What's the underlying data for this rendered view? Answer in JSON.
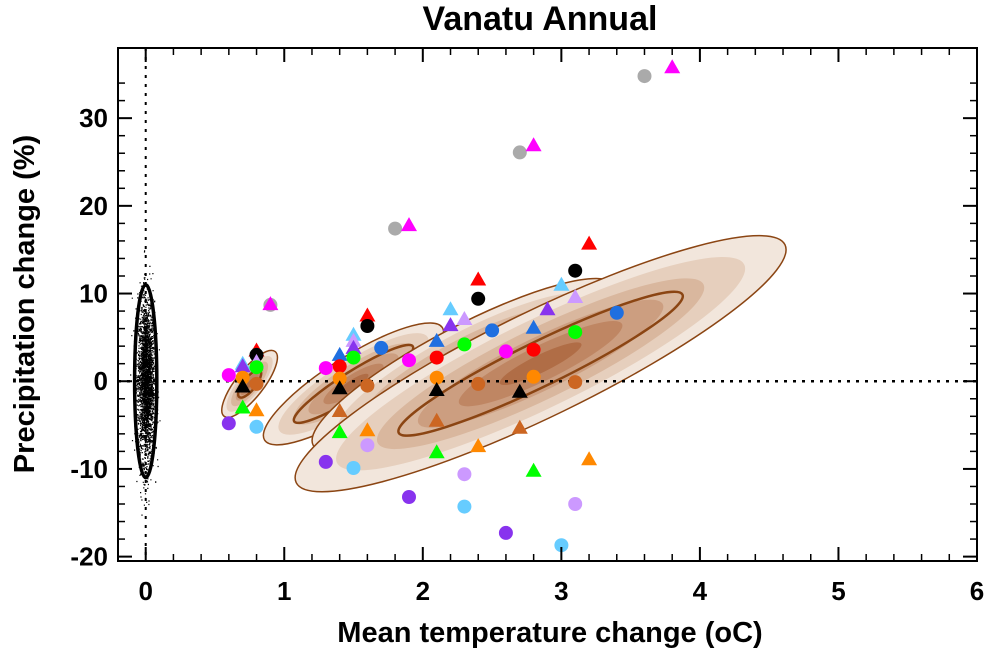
{
  "chart_data": {
    "type": "scatter",
    "title": "Vanatu Annual",
    "xlabel": "Mean temperature change",
    "xlabel_unit": "(oC)",
    "ylabel": "Precipitation change (%)",
    "xlim": [
      -0.2,
      6.0
    ],
    "ylim": [
      -20.5,
      38.0
    ],
    "xticks": [
      0,
      1,
      2,
      3,
      4,
      5,
      6
    ],
    "yticks": [
      -20,
      -10,
      0,
      10,
      20,
      30
    ],
    "xtick_labels": [
      "0",
      "1",
      "2",
      "3",
      "4",
      "5",
      "6"
    ],
    "ytick_labels": [
      "-20",
      "-10",
      "0",
      "10",
      "20",
      "30"
    ],
    "zero_lines": [
      "x = 0",
      "y = 0"
    ],
    "natural_variability": {
      "center_x": 0.0,
      "center_y": 0.0,
      "spread_x": 0.03,
      "spread_y": 4.5,
      "contour_half_width_x": 0.08,
      "contour_half_height_y": 11.0,
      "cloud_y_range": [
        -15.5,
        15.5
      ]
    },
    "ensembles": [
      {
        "name": "ensemble-1",
        "center": [
          0.75,
          -0.3
        ],
        "semi_axes": [
          0.1,
          4.7
        ],
        "core_semi_axes": [
          0.045,
          1.9
        ],
        "tilt": 0.05,
        "points": [
          {
            "x": 0.9,
            "y": 8.7,
            "c": "#aaaaaa",
            "m": "circle"
          },
          {
            "x": 0.9,
            "y": 8.8,
            "c": "#ff00ff",
            "m": "triangle"
          },
          {
            "x": 0.8,
            "y": 3.5,
            "c": "#ff0000",
            "m": "triangle"
          },
          {
            "x": 0.8,
            "y": 3.0,
            "c": "#000000",
            "m": "circle"
          },
          {
            "x": 0.8,
            "y": 2.2,
            "c": "#cc99ff",
            "m": "triangle"
          },
          {
            "x": 0.7,
            "y": 2.0,
            "c": "#66ccff",
            "m": "triangle"
          },
          {
            "x": 0.7,
            "y": 1.7,
            "c": "#8833ee",
            "m": "triangle"
          },
          {
            "x": 0.8,
            "y": 1.6,
            "c": "#00ff00",
            "m": "circle"
          },
          {
            "x": 0.6,
            "y": 0.7,
            "c": "#ff00ff",
            "m": "circle"
          },
          {
            "x": 0.7,
            "y": 0.4,
            "c": "#ff8800",
            "m": "circle"
          },
          {
            "x": 0.7,
            "y": -0.6,
            "c": "#000000",
            "m": "triangle"
          },
          {
            "x": 0.8,
            "y": -0.3,
            "c": "#cc6622",
            "m": "circle"
          },
          {
            "x": 0.7,
            "y": -3.0,
            "c": "#00ff00",
            "m": "triangle"
          },
          {
            "x": 0.8,
            "y": -3.3,
            "c": "#ff8800",
            "m": "triangle"
          },
          {
            "x": 0.6,
            "y": -4.8,
            "c": "#8833ee",
            "m": "circle"
          },
          {
            "x": 0.8,
            "y": -5.2,
            "c": "#66ccff",
            "m": "circle"
          }
        ]
      },
      {
        "name": "ensemble-2",
        "center": [
          1.5,
          -0.3
        ],
        "semi_axes": [
          0.2,
          12.0
        ],
        "core_semi_axes": [
          0.09,
          8.0
        ],
        "tilt": 0.1,
        "points": [
          {
            "x": 1.8,
            "y": 17.4,
            "c": "#aaaaaa",
            "m": "circle"
          },
          {
            "x": 1.9,
            "y": 17.8,
            "c": "#ff00ff",
            "m": "triangle"
          },
          {
            "x": 1.6,
            "y": 7.5,
            "c": "#ff0000",
            "m": "triangle"
          },
          {
            "x": 1.6,
            "y": 6.3,
            "c": "#000000",
            "m": "circle"
          },
          {
            "x": 1.5,
            "y": 5.3,
            "c": "#66ccff",
            "m": "triangle"
          },
          {
            "x": 1.5,
            "y": 4.6,
            "c": "#cc99ff",
            "m": "triangle"
          },
          {
            "x": 1.5,
            "y": 3.8,
            "c": "#8833ee",
            "m": "triangle"
          },
          {
            "x": 1.7,
            "y": 3.8,
            "c": "#1f6fe0",
            "m": "circle"
          },
          {
            "x": 1.4,
            "y": 3.0,
            "c": "#1f6fe0",
            "m": "triangle"
          },
          {
            "x": 1.5,
            "y": 2.7,
            "c": "#00ff00",
            "m": "circle"
          },
          {
            "x": 1.9,
            "y": 2.4,
            "c": "#ff00ff",
            "m": "circle"
          },
          {
            "x": 1.4,
            "y": 1.7,
            "c": "#ff0000",
            "m": "circle"
          },
          {
            "x": 1.3,
            "y": 1.5,
            "c": "#ff00ff",
            "m": "circle"
          },
          {
            "x": 1.4,
            "y": 0.3,
            "c": "#ff8800",
            "m": "circle"
          },
          {
            "x": 1.6,
            "y": -0.5,
            "c": "#cc6622",
            "m": "circle"
          },
          {
            "x": 1.4,
            "y": -0.8,
            "c": "#000000",
            "m": "triangle"
          },
          {
            "x": 1.4,
            "y": -3.4,
            "c": "#cc6622",
            "m": "triangle"
          },
          {
            "x": 1.4,
            "y": -5.8,
            "c": "#00ff00",
            "m": "triangle"
          },
          {
            "x": 1.6,
            "y": -5.6,
            "c": "#ff8800",
            "m": "triangle"
          },
          {
            "x": 1.6,
            "y": -7.3,
            "c": "#cc99ff",
            "m": "circle"
          },
          {
            "x": 1.3,
            "y": -9.2,
            "c": "#8833ee",
            "m": "circle"
          },
          {
            "x": 1.5,
            "y": -9.9,
            "c": "#66ccff",
            "m": "circle"
          }
        ]
      },
      {
        "name": "ensemble-3",
        "center": [
          2.3,
          1.8
        ],
        "semi_axes": [
          0.28,
          19.5
        ],
        "core_semi_axes": [
          0.12,
          13.0
        ],
        "tilt": 0.12,
        "points": [
          {
            "x": 2.7,
            "y": 26.1,
            "c": "#aaaaaa",
            "m": "circle"
          },
          {
            "x": 2.8,
            "y": 26.9,
            "c": "#ff00ff",
            "m": "triangle"
          },
          {
            "x": 2.4,
            "y": 11.6,
            "c": "#ff0000",
            "m": "triangle"
          },
          {
            "x": 2.4,
            "y": 9.4,
            "c": "#000000",
            "m": "circle"
          },
          {
            "x": 2.2,
            "y": 8.2,
            "c": "#66ccff",
            "m": "triangle"
          },
          {
            "x": 2.3,
            "y": 7.1,
            "c": "#cc99ff",
            "m": "triangle"
          },
          {
            "x": 2.2,
            "y": 6.4,
            "c": "#8833ee",
            "m": "triangle"
          },
          {
            "x": 2.5,
            "y": 5.8,
            "c": "#1f6fe0",
            "m": "circle"
          },
          {
            "x": 2.1,
            "y": 4.6,
            "c": "#1f6fe0",
            "m": "triangle"
          },
          {
            "x": 2.3,
            "y": 4.2,
            "c": "#00ff00",
            "m": "circle"
          },
          {
            "x": 2.6,
            "y": 3.4,
            "c": "#ff00ff",
            "m": "circle"
          },
          {
            "x": 2.1,
            "y": 2.7,
            "c": "#ff0000",
            "m": "circle"
          },
          {
            "x": 2.1,
            "y": 0.4,
            "c": "#ff8800",
            "m": "circle"
          },
          {
            "x": 2.4,
            "y": -0.3,
            "c": "#cc6622",
            "m": "circle"
          },
          {
            "x": 2.1,
            "y": -1.0,
            "c": "#000000",
            "m": "triangle"
          },
          {
            "x": 2.1,
            "y": -4.5,
            "c": "#cc6622",
            "m": "triangle"
          },
          {
            "x": 2.4,
            "y": -7.4,
            "c": "#ff8800",
            "m": "triangle"
          },
          {
            "x": 2.1,
            "y": -8.1,
            "c": "#00ff00",
            "m": "triangle"
          },
          {
            "x": 2.3,
            "y": -10.6,
            "c": "#cc99ff",
            "m": "circle"
          },
          {
            "x": 1.9,
            "y": -13.2,
            "c": "#8833ee",
            "m": "circle"
          },
          {
            "x": 2.3,
            "y": -14.3,
            "c": "#66ccff",
            "m": "circle"
          }
        ]
      },
      {
        "name": "ensemble-4",
        "center": [
          2.85,
          2.0
        ],
        "semi_axes": [
          0.38,
          31.0
        ],
        "core_semi_axes": [
          0.16,
          18.0
        ],
        "tilt": 0.13,
        "points": [
          {
            "x": 3.6,
            "y": 34.8,
            "c": "#aaaaaa",
            "m": "circle"
          },
          {
            "x": 3.8,
            "y": 35.8,
            "c": "#ff00ff",
            "m": "triangle"
          },
          {
            "x": 3.2,
            "y": 15.7,
            "c": "#ff0000",
            "m": "triangle"
          },
          {
            "x": 3.1,
            "y": 12.6,
            "c": "#000000",
            "m": "circle"
          },
          {
            "x": 3.0,
            "y": 11.0,
            "c": "#66ccff",
            "m": "triangle"
          },
          {
            "x": 3.1,
            "y": 9.6,
            "c": "#cc99ff",
            "m": "triangle"
          },
          {
            "x": 2.9,
            "y": 8.2,
            "c": "#8833ee",
            "m": "triangle"
          },
          {
            "x": 3.4,
            "y": 7.8,
            "c": "#1f6fe0",
            "m": "circle"
          },
          {
            "x": 2.8,
            "y": 6.1,
            "c": "#1f6fe0",
            "m": "triangle"
          },
          {
            "x": 3.1,
            "y": 5.6,
            "c": "#00ff00",
            "m": "circle"
          },
          {
            "x": 2.8,
            "y": 3.6,
            "c": "#ff0000",
            "m": "circle"
          },
          {
            "x": 2.8,
            "y": 0.5,
            "c": "#ff8800",
            "m": "circle"
          },
          {
            "x": 3.1,
            "y": -0.1,
            "c": "#cc6622",
            "m": "circle"
          },
          {
            "x": 2.7,
            "y": -1.2,
            "c": "#000000",
            "m": "triangle"
          },
          {
            "x": 2.7,
            "y": -5.3,
            "c": "#cc6622",
            "m": "triangle"
          },
          {
            "x": 3.2,
            "y": -8.9,
            "c": "#ff8800",
            "m": "triangle"
          },
          {
            "x": 2.8,
            "y": -10.2,
            "c": "#00ff00",
            "m": "triangle"
          },
          {
            "x": 3.1,
            "y": -14.0,
            "c": "#cc99ff",
            "m": "circle"
          },
          {
            "x": 2.6,
            "y": -17.3,
            "c": "#8833ee",
            "m": "circle"
          },
          {
            "x": 3.0,
            "y": -18.7,
            "c": "#66ccff",
            "m": "circle"
          }
        ]
      }
    ]
  },
  "colors": {
    "outline": "#8b4513",
    "shades": [
      "#f2e6dc",
      "#e6cfbd",
      "#d9b79e",
      "#cc9e80",
      "#bf8663",
      "#b06d46"
    ]
  }
}
